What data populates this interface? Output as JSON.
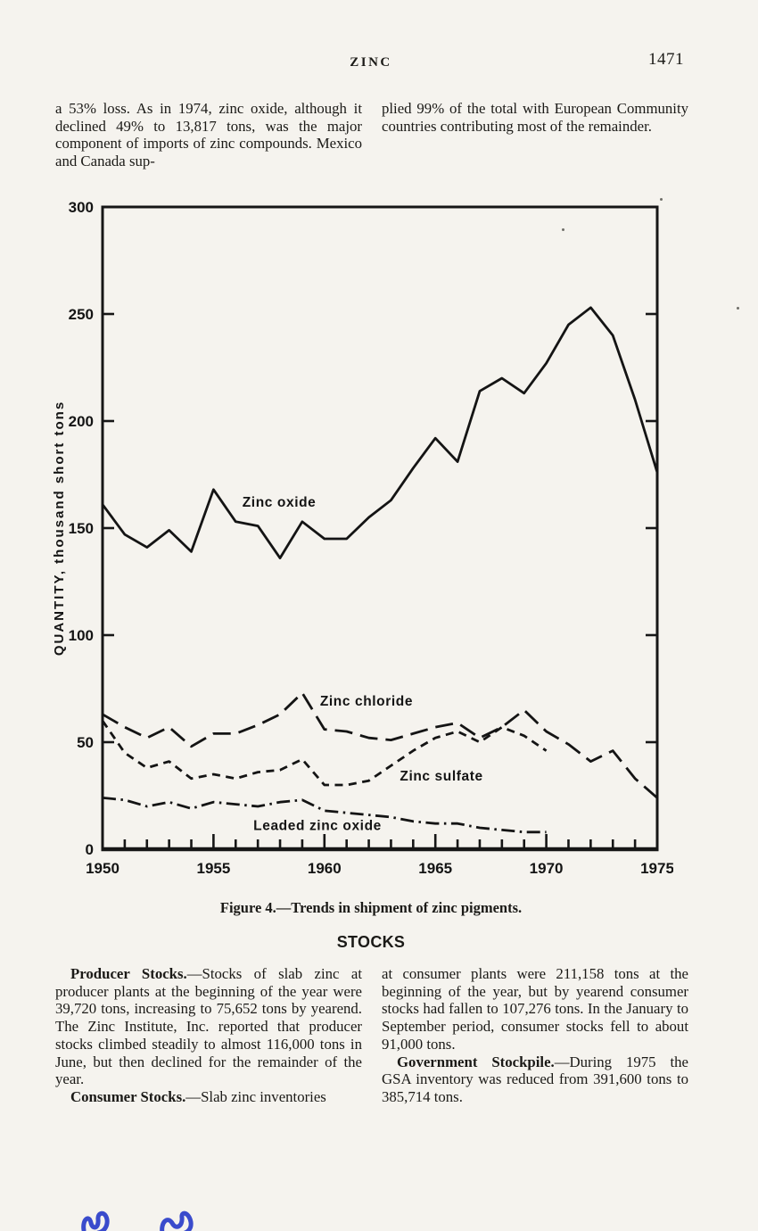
{
  "page": {
    "header": {
      "title": "ZINC",
      "page_number": "1471"
    },
    "intro": {
      "left": "a 53% loss. As in 1974, zinc oxide, although it declined 49% to 13,817 tons, was the major component of imports of zinc compounds. Mexico and Canada sup-",
      "right": "plied 99% of the total with European Community countries contributing most of the remainder."
    },
    "figure_caption": "Figure 4.—Trends in shipment of zinc pigments.",
    "stocks": {
      "heading": "STOCKS",
      "paragraphs": [
        {
          "lead": "Producer Stocks.",
          "text": "—Stocks of slab zinc at producer plants at the beginning of the year were 39,720 tons, increasing to 75,652 tons by yearend. The Zinc Institute, Inc. reported that producer stocks climbed steadily to almost 116,000 tons in June, but then declined for the remainder of the year."
        },
        {
          "lead": "Consumer Stocks.",
          "text": "—Slab zinc inventories"
        },
        {
          "lead": "",
          "text": "at consumer plants were 211,158 tons at the beginning of the year, but by yearend consumer stocks had fallen to 107,276 tons. In the January to September period, consumer stocks fell to about 91,000 tons."
        },
        {
          "lead": "Government Stockpile.",
          "text": "—During 1975 the GSA inventory was reduced from 391,600 tons to 385,714 tons."
        }
      ]
    }
  },
  "chart_data": {
    "type": "line",
    "title": "Figure 4.—Trends in shipment of zinc pigments.",
    "ylabel": "QUANTITY, thousand short tons",
    "xlabel": "",
    "xlim": [
      1950,
      1975
    ],
    "ylim": [
      0,
      300
    ],
    "y_ticks": [
      0,
      50,
      100,
      150,
      200,
      250,
      300
    ],
    "x_tick_labels": [
      "1950",
      "1955",
      "1960",
      "1965",
      "1970",
      "1975"
    ],
    "grid": false,
    "legend": "inline-labels",
    "series": [
      {
        "name": "Zinc oxide",
        "dash": "solid",
        "start_x": 1950,
        "values": [
          161,
          147,
          141,
          149,
          139,
          168,
          153,
          151,
          136,
          153,
          145,
          145,
          155,
          163,
          178,
          192,
          181,
          214,
          220,
          213,
          227,
          245,
          253,
          240,
          210,
          176
        ]
      },
      {
        "name": "Zinc chloride",
        "dash": "long-dash",
        "start_x": 1950,
        "values": [
          63,
          57,
          52,
          57,
          48,
          54,
          54,
          58,
          63,
          73,
          56,
          55,
          52,
          51,
          54,
          57,
          59,
          52,
          57,
          65,
          55,
          49,
          41,
          46,
          33,
          24
        ]
      },
      {
        "name": "Zinc sulfate",
        "dash": "short-dash",
        "start_x": 1950,
        "values": [
          60,
          45,
          38,
          41,
          33,
          35,
          33,
          36,
          37,
          42,
          30,
          30,
          32,
          39,
          46,
          52,
          55,
          50,
          57,
          53,
          46
        ]
      },
      {
        "name": "Leaded zinc oxide",
        "dash": "dash-dot",
        "start_x": 1950,
        "values": [
          24,
          23,
          20,
          22,
          19,
          22,
          21,
          20,
          22,
          23,
          18,
          17,
          16,
          15,
          13,
          12,
          12,
          10,
          9,
          8,
          8
        ]
      }
    ],
    "labels": [
      {
        "text": "Zinc oxide",
        "x": 1956.3,
        "y": 160
      },
      {
        "text": "Zinc chloride",
        "x": 1959.8,
        "y": 67
      },
      {
        "text": "Zinc sulfate",
        "x": 1963.4,
        "y": 32
      },
      {
        "text": "Leaded zinc oxide",
        "x": 1956.8,
        "y": 9
      }
    ]
  }
}
